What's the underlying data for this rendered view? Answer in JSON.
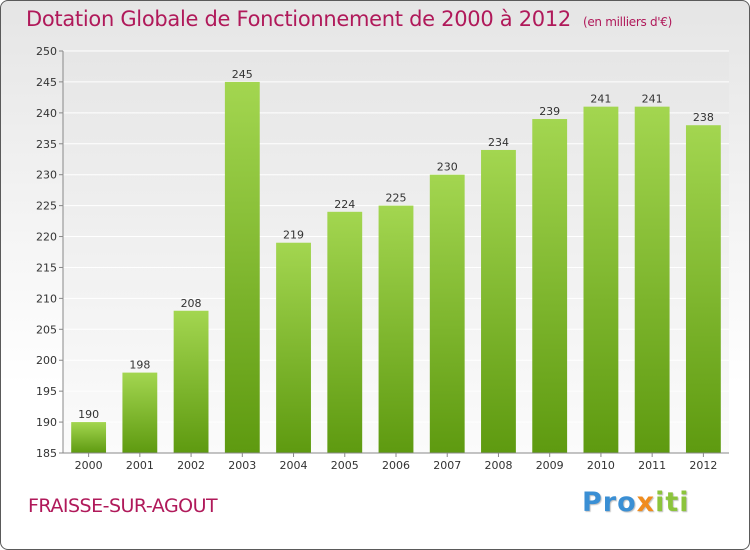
{
  "title": "Dotation Globale de Fonctionnement de 2000 à 2012",
  "subtitle": "(en milliers d'€)",
  "place": "FRAISSE-SUR-AGOUT",
  "logo": {
    "part1": "Pro",
    "part2": "x",
    "part3": "iti"
  },
  "colors": {
    "bar_light": "#9fd24c",
    "bar_dark": "#5e9a10",
    "title": "#b0195a"
  },
  "chart_data": {
    "type": "bar",
    "title": "Dotation Globale de Fonctionnement de 2000 à 2012",
    "subtitle": "(en milliers d'€)",
    "categories": [
      "2000",
      "2001",
      "2002",
      "2003",
      "2004",
      "2005",
      "2006",
      "2007",
      "2008",
      "2009",
      "2010",
      "2011",
      "2012"
    ],
    "values": [
      190,
      198,
      208,
      245,
      219,
      224,
      225,
      230,
      234,
      239,
      241,
      241,
      238
    ],
    "ylim": [
      185,
      250
    ],
    "yticks": [
      185,
      190,
      195,
      200,
      205,
      210,
      215,
      220,
      225,
      230,
      235,
      240,
      245,
      250
    ],
    "grid": true,
    "legend": "none"
  }
}
